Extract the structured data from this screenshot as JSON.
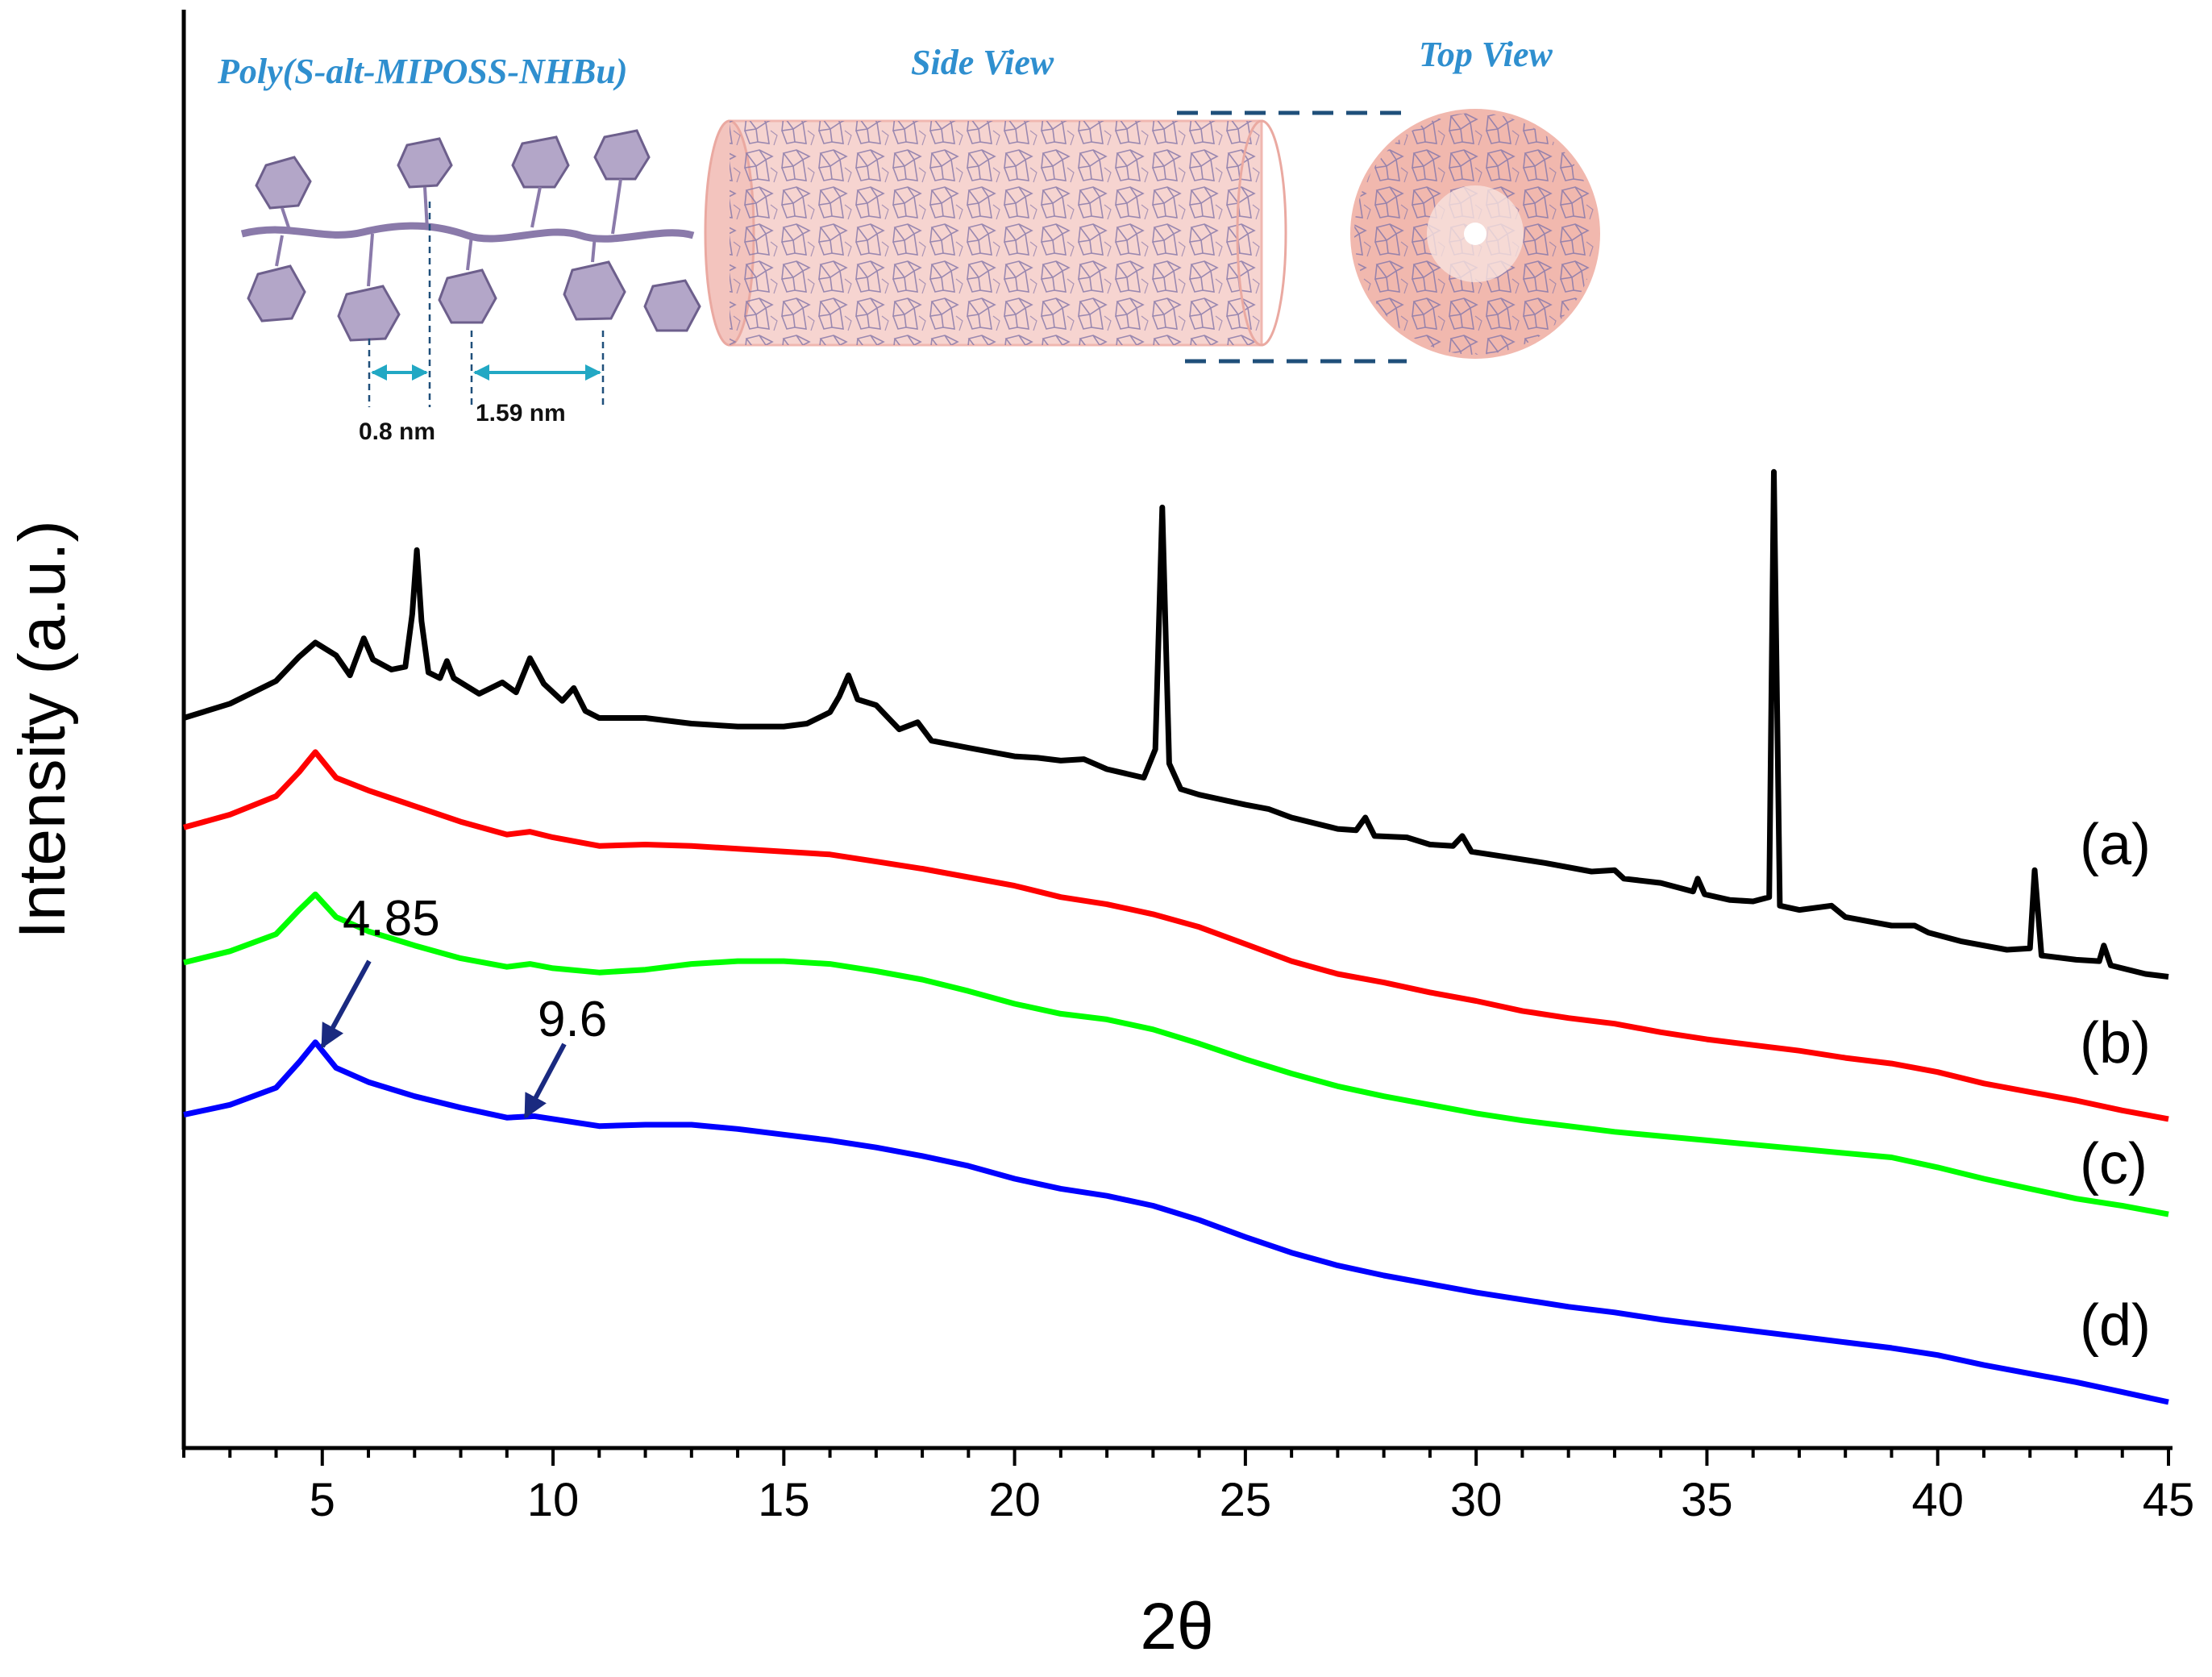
{
  "chart_data": {
    "type": "line",
    "title": "",
    "xlabel": "2θ",
    "ylabel": "Intensity (a.u.)",
    "xlim": [
      2,
      45
    ],
    "ylim": [
      0,
      100
    ],
    "x_major_ticks": [
      5,
      10,
      15,
      20,
      25,
      30,
      35,
      40,
      45
    ],
    "x_tick_labels": [
      "5",
      "10",
      "15",
      "20",
      "25",
      "30",
      "35",
      "40",
      "45"
    ],
    "y_ticks": "none (arbitrary units)",
    "grid": false,
    "series": [
      {
        "name": "(a)",
        "label": "(a)",
        "color": "#000000",
        "points": [
          [
            2,
            50.2
          ],
          [
            3,
            51.2
          ],
          [
            4,
            52.8
          ],
          [
            4.5,
            54.5
          ],
          [
            4.85,
            55.5
          ],
          [
            5.3,
            54.6
          ],
          [
            5.6,
            53.2
          ],
          [
            5.9,
            55.8
          ],
          [
            6.1,
            54.3
          ],
          [
            6.5,
            53.6
          ],
          [
            6.8,
            53.8
          ],
          [
            6.95,
            57.5
          ],
          [
            7.05,
            62.0
          ],
          [
            7.15,
            57.0
          ],
          [
            7.3,
            53.4
          ],
          [
            7.55,
            53.0
          ],
          [
            7.7,
            54.2
          ],
          [
            7.85,
            53.0
          ],
          [
            8.4,
            51.9
          ],
          [
            8.9,
            52.7
          ],
          [
            9.2,
            52.0
          ],
          [
            9.5,
            54.4
          ],
          [
            9.8,
            52.6
          ],
          [
            10.2,
            51.4
          ],
          [
            10.45,
            52.3
          ],
          [
            10.7,
            50.7
          ],
          [
            11,
            50.2
          ],
          [
            12,
            50.2
          ],
          [
            13,
            49.8
          ],
          [
            14,
            49.6
          ],
          [
            15,
            49.6
          ],
          [
            15.5,
            49.8
          ],
          [
            16,
            50.6
          ],
          [
            16.2,
            51.7
          ],
          [
            16.4,
            53.2
          ],
          [
            16.6,
            51.5
          ],
          [
            17,
            51.1
          ],
          [
            17.5,
            49.4
          ],
          [
            17.9,
            49.9
          ],
          [
            18.2,
            48.6
          ],
          [
            19,
            48.1
          ],
          [
            20,
            47.5
          ],
          [
            20.5,
            47.4
          ],
          [
            21,
            47.2
          ],
          [
            21.5,
            47.3
          ],
          [
            22,
            46.6
          ],
          [
            22.8,
            46.0
          ],
          [
            23.05,
            48.0
          ],
          [
            23.2,
            65.0
          ],
          [
            23.35,
            47.0
          ],
          [
            23.6,
            45.2
          ],
          [
            24,
            44.8
          ],
          [
            25,
            44.1
          ],
          [
            25.5,
            43.8
          ],
          [
            26,
            43.2
          ],
          [
            27,
            42.4
          ],
          [
            27.4,
            42.3
          ],
          [
            27.6,
            43.2
          ],
          [
            27.8,
            41.9
          ],
          [
            28.5,
            41.8
          ],
          [
            29,
            41.3
          ],
          [
            29.5,
            41.2
          ],
          [
            29.7,
            41.9
          ],
          [
            29.9,
            40.8
          ],
          [
            30.5,
            40.5
          ],
          [
            31.5,
            40.0
          ],
          [
            32.5,
            39.4
          ],
          [
            33,
            39.5
          ],
          [
            33.2,
            38.9
          ],
          [
            34,
            38.6
          ],
          [
            34.7,
            38.0
          ],
          [
            34.8,
            38.9
          ],
          [
            34.95,
            37.8
          ],
          [
            35.5,
            37.4
          ],
          [
            36,
            37.3
          ],
          [
            36.35,
            37.6
          ],
          [
            36.45,
            67.5
          ],
          [
            36.58,
            37.0
          ],
          [
            37,
            36.7
          ],
          [
            37.7,
            37.0
          ],
          [
            38,
            36.2
          ],
          [
            39,
            35.6
          ],
          [
            39.5,
            35.6
          ],
          [
            39.8,
            35.1
          ],
          [
            40.5,
            34.5
          ],
          [
            41.5,
            33.9
          ],
          [
            42,
            34.0
          ],
          [
            42.1,
            39.5
          ],
          [
            42.25,
            33.5
          ],
          [
            43,
            33.2
          ],
          [
            43.5,
            33.1
          ],
          [
            43.6,
            34.2
          ],
          [
            43.75,
            32.8
          ],
          [
            44.5,
            32.2
          ],
          [
            45,
            32.0
          ]
        ]
      },
      {
        "name": "(b)",
        "label": "(b)",
        "color": "#ff0000",
        "points": [
          [
            2,
            42.5
          ],
          [
            3,
            43.4
          ],
          [
            4,
            44.7
          ],
          [
            4.5,
            46.4
          ],
          [
            4.85,
            47.8
          ],
          [
            5.3,
            46.0
          ],
          [
            6,
            45.1
          ],
          [
            7,
            44.0
          ],
          [
            8,
            42.9
          ],
          [
            9,
            42.0
          ],
          [
            9.5,
            42.2
          ],
          [
            10,
            41.8
          ],
          [
            11,
            41.2
          ],
          [
            12,
            41.3
          ],
          [
            13,
            41.2
          ],
          [
            14,
            41.0
          ],
          [
            15,
            40.8
          ],
          [
            16,
            40.6
          ],
          [
            17,
            40.1
          ],
          [
            18,
            39.6
          ],
          [
            19,
            39.0
          ],
          [
            20,
            38.4
          ],
          [
            21,
            37.6
          ],
          [
            22,
            37.1
          ],
          [
            23,
            36.4
          ],
          [
            24,
            35.5
          ],
          [
            25,
            34.3
          ],
          [
            26,
            33.1
          ],
          [
            27,
            32.2
          ],
          [
            28,
            31.6
          ],
          [
            29,
            30.9
          ],
          [
            30,
            30.3
          ],
          [
            31,
            29.6
          ],
          [
            32,
            29.1
          ],
          [
            33,
            28.7
          ],
          [
            34,
            28.1
          ],
          [
            35,
            27.6
          ],
          [
            36,
            27.2
          ],
          [
            37,
            26.8
          ],
          [
            38,
            26.3
          ],
          [
            39,
            25.9
          ],
          [
            40,
            25.3
          ],
          [
            41,
            24.5
          ],
          [
            42,
            23.9
          ],
          [
            43,
            23.3
          ],
          [
            44,
            22.6
          ],
          [
            45,
            22.0
          ]
        ]
      },
      {
        "name": "(c)",
        "label": "(c)",
        "color": "#00ff00",
        "points": [
          [
            2,
            33.0
          ],
          [
            3,
            33.8
          ],
          [
            4,
            35.0
          ],
          [
            4.5,
            36.7
          ],
          [
            4.85,
            37.8
          ],
          [
            5.3,
            36.2
          ],
          [
            6,
            35.2
          ],
          [
            7,
            34.2
          ],
          [
            8,
            33.3
          ],
          [
            9,
            32.7
          ],
          [
            9.5,
            32.9
          ],
          [
            10,
            32.6
          ],
          [
            11,
            32.3
          ],
          [
            12,
            32.5
          ],
          [
            13,
            32.9
          ],
          [
            14,
            33.1
          ],
          [
            15,
            33.1
          ],
          [
            16,
            32.9
          ],
          [
            17,
            32.4
          ],
          [
            18,
            31.8
          ],
          [
            19,
            31.0
          ],
          [
            20,
            30.1
          ],
          [
            21,
            29.4
          ],
          [
            22,
            29.0
          ],
          [
            23,
            28.3
          ],
          [
            24,
            27.3
          ],
          [
            25,
            26.2
          ],
          [
            26,
            25.2
          ],
          [
            27,
            24.3
          ],
          [
            28,
            23.6
          ],
          [
            29,
            23.0
          ],
          [
            30,
            22.4
          ],
          [
            31,
            21.9
          ],
          [
            32,
            21.5
          ],
          [
            33,
            21.1
          ],
          [
            34,
            20.8
          ],
          [
            35,
            20.5
          ],
          [
            36,
            20.2
          ],
          [
            37,
            19.9
          ],
          [
            38,
            19.6
          ],
          [
            39,
            19.3
          ],
          [
            40,
            18.6
          ],
          [
            41,
            17.8
          ],
          [
            42,
            17.1
          ],
          [
            43,
            16.4
          ],
          [
            44,
            15.9
          ],
          [
            45,
            15.3
          ]
        ]
      },
      {
        "name": "(d)",
        "label": "(d)",
        "color": "#0000ff",
        "points": [
          [
            2,
            22.3
          ],
          [
            3,
            23.0
          ],
          [
            4,
            24.2
          ],
          [
            4.5,
            26.0
          ],
          [
            4.85,
            27.4
          ],
          [
            5.3,
            25.6
          ],
          [
            6,
            24.6
          ],
          [
            7,
            23.6
          ],
          [
            8,
            22.8
          ],
          [
            9,
            22.1
          ],
          [
            9.6,
            22.2
          ],
          [
            10,
            22.0
          ],
          [
            11,
            21.5
          ],
          [
            12,
            21.6
          ],
          [
            13,
            21.6
          ],
          [
            14,
            21.3
          ],
          [
            15,
            20.9
          ],
          [
            16,
            20.5
          ],
          [
            17,
            20.0
          ],
          [
            18,
            19.4
          ],
          [
            19,
            18.7
          ],
          [
            20,
            17.8
          ],
          [
            21,
            17.1
          ],
          [
            22,
            16.6
          ],
          [
            23,
            15.9
          ],
          [
            24,
            14.9
          ],
          [
            25,
            13.7
          ],
          [
            26,
            12.6
          ],
          [
            27,
            11.7
          ],
          [
            28,
            11.0
          ],
          [
            29,
            10.4
          ],
          [
            30,
            9.8
          ],
          [
            31,
            9.3
          ],
          [
            32,
            8.8
          ],
          [
            33,
            8.4
          ],
          [
            34,
            7.9
          ],
          [
            35,
            7.5
          ],
          [
            36,
            7.1
          ],
          [
            37,
            6.7
          ],
          [
            38,
            6.3
          ],
          [
            39,
            5.9
          ],
          [
            40,
            5.4
          ],
          [
            41,
            4.7
          ],
          [
            42,
            4.1
          ],
          [
            43,
            3.5
          ],
          [
            44,
            2.8
          ],
          [
            45,
            2.1
          ]
        ]
      }
    ],
    "annotations": [
      {
        "text": "4.85",
        "x": 4.85,
        "series": "(d)"
      },
      {
        "text": "9.6",
        "x": 9.6,
        "series": "(d)"
      }
    ]
  },
  "inset": {
    "title_polymer": "Poly(S-alt-MIPOSS-NHBu)",
    "title_side": "Side View",
    "title_top": "Top View",
    "dim_short": "0.8 nm",
    "dim_long": "1.59 nm"
  },
  "colors": {
    "inset_title": "#2f8fcf",
    "arrow": "#1a2a80",
    "cylinder_fill": "#f6d4d0",
    "molecule": "#8a7aaa",
    "dim_arrow": "#22a8c4",
    "dashed": "#1f4f7a"
  }
}
